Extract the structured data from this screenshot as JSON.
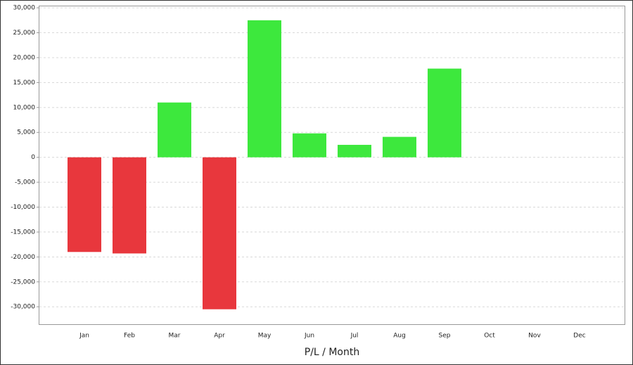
{
  "chart_data": {
    "type": "bar",
    "x_label": "P/L / Month",
    "categories": [
      "Jan",
      "Feb",
      "Mar",
      "Apr",
      "May",
      "Jun",
      "Jul",
      "Aug",
      "Sep",
      "Oct",
      "Nov",
      "Dec"
    ],
    "values": [
      -19000,
      -19300,
      11000,
      -30500,
      27500,
      4800,
      2500,
      4100,
      17800,
      null,
      null,
      null
    ],
    "positive_color": "#3de83d",
    "negative_color": "#e8373d",
    "ylim": [
      -33500,
      30300
    ],
    "yticks": [
      {
        "value": -30000,
        "label": "-30,000"
      },
      {
        "value": -25000,
        "label": "-25,000"
      },
      {
        "value": -20000,
        "label": "-20,000"
      },
      {
        "value": -15000,
        "label": "-15,000"
      },
      {
        "value": -10000,
        "label": "-10,000"
      },
      {
        "value": -5000,
        "label": "-5,000"
      },
      0,
      {
        "value": 5000,
        "label": "5,000"
      },
      {
        "value": 10000,
        "label": "10,000"
      },
      {
        "value": 15000,
        "label": "15,000"
      },
      {
        "value": 20000,
        "label": "20,000"
      },
      {
        "value": 25000,
        "label": "25,000"
      },
      {
        "value": 30000,
        "label": "30,000"
      }
    ],
    "grid": true
  }
}
